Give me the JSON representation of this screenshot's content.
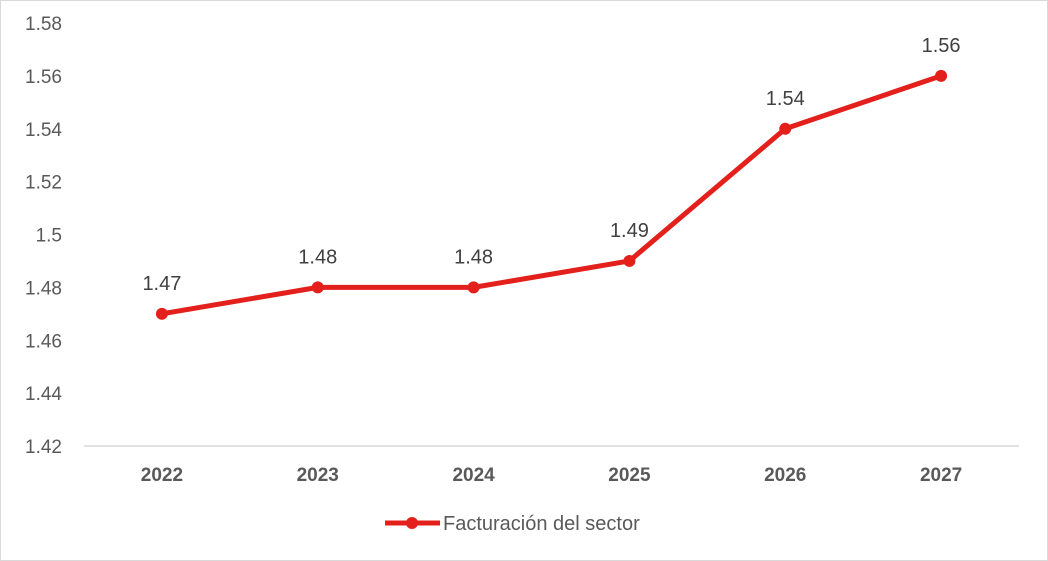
{
  "chart_data": {
    "type": "line",
    "title": "",
    "xlabel": "",
    "ylabel": "",
    "categories": [
      "2022",
      "2023",
      "2024",
      "2025",
      "2026",
      "2027"
    ],
    "series": [
      {
        "name": "Facturación del sector",
        "values": [
          1.47,
          1.48,
          1.48,
          1.49,
          1.54,
          1.56
        ],
        "color": "#e3201b"
      }
    ],
    "data_labels": [
      "1.47",
      "1.48",
      "1.48",
      "1.49",
      "1.54",
      "1.56"
    ],
    "ylim": [
      1.42,
      1.58
    ],
    "yticks": [
      "1.42",
      "1.44",
      "1.46",
      "1.48",
      "1.5",
      "1.52",
      "1.54",
      "1.56",
      "1.58"
    ],
    "grid": false,
    "legend": "bottom"
  }
}
